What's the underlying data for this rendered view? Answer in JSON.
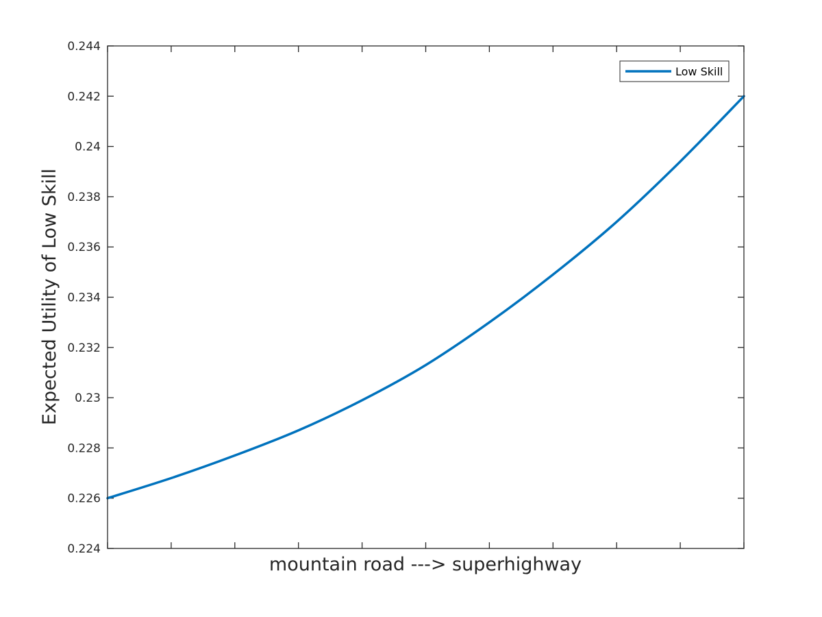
{
  "chart_data": {
    "type": "line",
    "title": "",
    "xlabel": "mountain road ---> superhighway",
    "ylabel": "Expected Utility of Low Skill",
    "xlim": [
      0,
      1
    ],
    "ylim": [
      0.224,
      0.244
    ],
    "x_tick_count": 11,
    "x_tick_labels_shown": false,
    "yticks": [
      0.224,
      0.226,
      0.228,
      0.23,
      0.232,
      0.234,
      0.236,
      0.238,
      0.24,
      0.242,
      0.244
    ],
    "ytick_labels": [
      "0.224",
      "0.226",
      "0.228",
      "0.23",
      "0.232",
      "0.234",
      "0.236",
      "0.238",
      "0.24",
      "0.242",
      "0.244"
    ],
    "grid": false,
    "legend": {
      "position": "top-right",
      "entries": [
        "Low Skill"
      ]
    },
    "series": [
      {
        "name": "Low Skill",
        "color": "#0072BD",
        "x": [
          0,
          0.1,
          0.2,
          0.3,
          0.4,
          0.5,
          0.6,
          0.7,
          0.8,
          0.9,
          1.0
        ],
        "y": [
          0.226,
          0.2268,
          0.2277,
          0.2287,
          0.2299,
          0.2313,
          0.233,
          0.2349,
          0.237,
          0.2394,
          0.242
        ]
      }
    ]
  }
}
